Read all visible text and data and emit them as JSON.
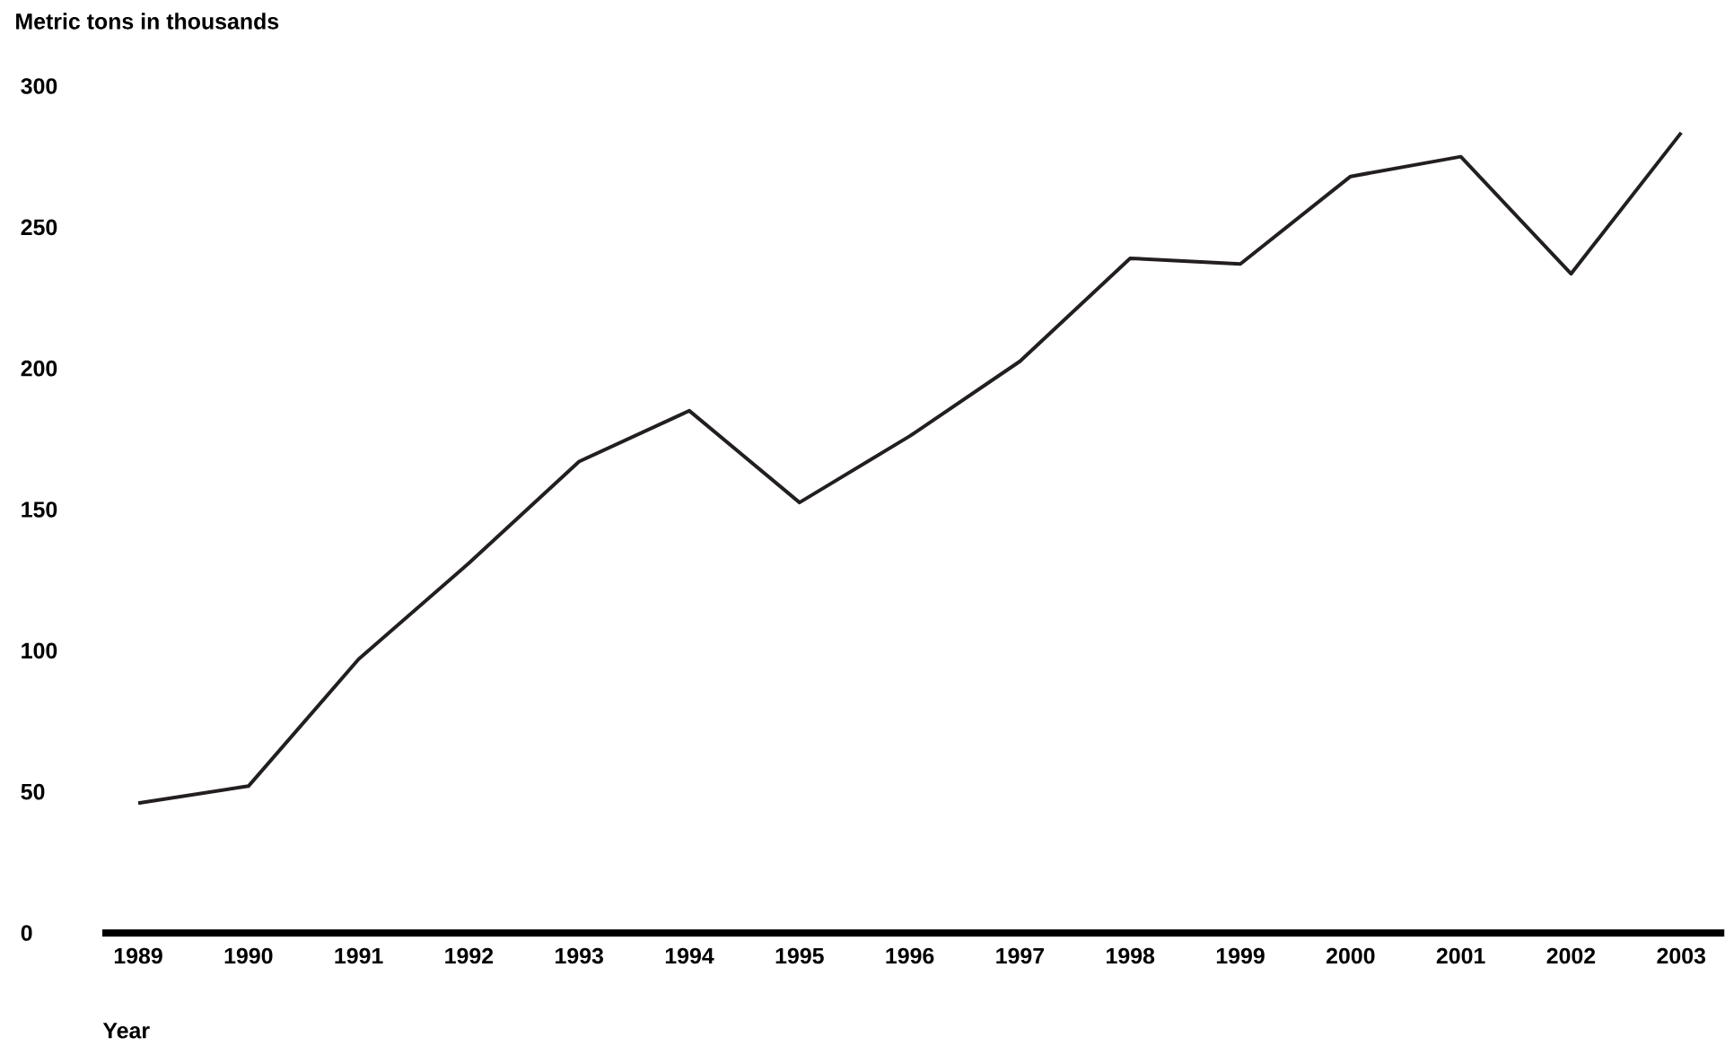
{
  "chart_data": {
    "type": "line",
    "ylabel": "Metric tons in thousands",
    "xlabel": "Year",
    "categories": [
      "1989",
      "1990",
      "1991",
      "1992",
      "1993",
      "1994",
      "1995",
      "1996",
      "1997",
      "1998",
      "1999",
      "2000",
      "2001",
      "2002",
      "2003"
    ],
    "series": [
      {
        "color": "#231f20",
        "values": [
          46,
          52,
          97,
          131,
          167,
          185,
          152.5,
          176,
          202.5,
          239,
          237,
          268,
          275,
          233.5,
          283.5
        ]
      }
    ],
    "ylim": [
      0,
      300
    ],
    "yticks": [
      0,
      50,
      100,
      150,
      200,
      250,
      300
    ]
  }
}
